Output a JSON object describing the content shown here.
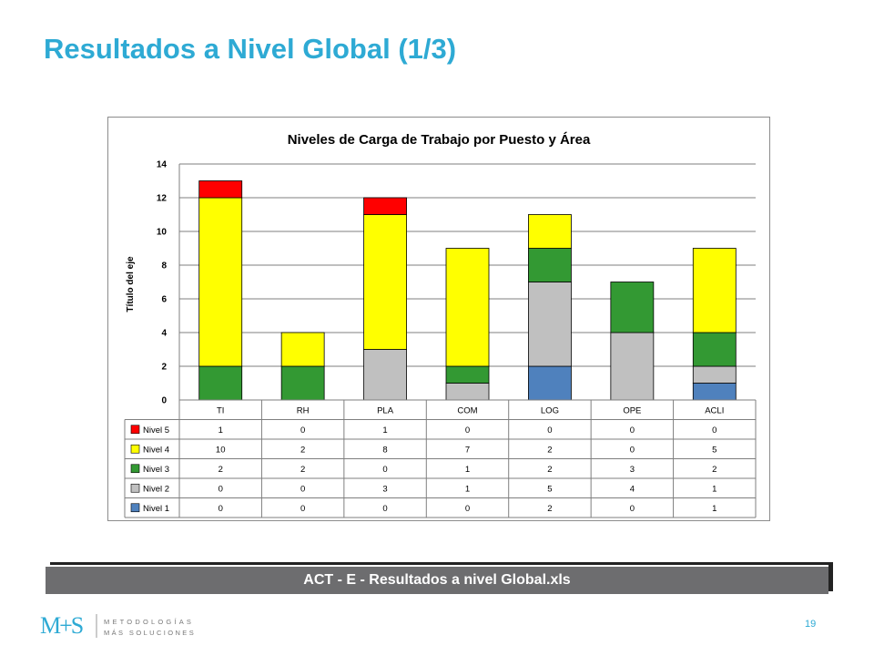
{
  "slide": {
    "title": "Resultados a Nivel Global (1/3)",
    "file_label": "ACT - E - Resultados a nivel Global.xls",
    "page_number": "19",
    "logo": {
      "mark": "M+S",
      "line1": "METODOLOGÍAS",
      "line2": "MÁS SOLUCIONES"
    }
  },
  "chart_data": {
    "type": "bar",
    "stacked": true,
    "title": "Niveles de Carga de Trabajo por Puesto y Área",
    "ylabel": "Título del eje",
    "xlabel": "",
    "ylim": [
      0,
      14
    ],
    "yticks": [
      0,
      2,
      4,
      6,
      8,
      10,
      12,
      14
    ],
    "grid": true,
    "legend": "data-table-left",
    "categories": [
      "TI",
      "RH",
      "PLA",
      "COM",
      "LOG",
      "OPE",
      "ACLI"
    ],
    "series": [
      {
        "name": "Nivel 1",
        "color": "#4f81bd",
        "values": [
          0,
          0,
          0,
          0,
          2,
          0,
          1
        ]
      },
      {
        "name": "Nivel 2",
        "color": "#c0c0c0",
        "values": [
          0,
          0,
          3,
          1,
          5,
          4,
          1
        ]
      },
      {
        "name": "Nivel 3",
        "color": "#339933",
        "values": [
          2,
          2,
          0,
          1,
          2,
          3,
          2
        ]
      },
      {
        "name": "Nivel 4",
        "color": "#ffff00",
        "values": [
          10,
          2,
          8,
          7,
          2,
          0,
          5
        ]
      },
      {
        "name": "Nivel 5",
        "color": "#ff0000",
        "values": [
          1,
          0,
          1,
          0,
          0,
          0,
          0
        ]
      }
    ],
    "table_row_order": [
      "Nivel 5",
      "Nivel 4",
      "Nivel 3",
      "Nivel 2",
      "Nivel 1"
    ]
  }
}
